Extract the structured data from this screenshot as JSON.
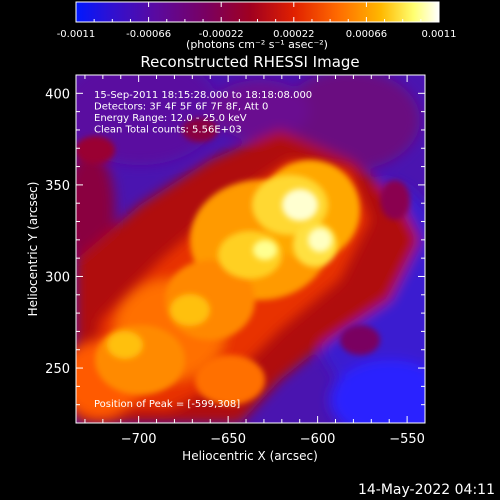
{
  "colorbar": {
    "tick_labels": [
      "-0.0011",
      "-0.00066",
      "-0.00022",
      "0.00022",
      "0.00066",
      "0.0011"
    ],
    "tick_values": [
      -0.0011,
      -0.00066,
      -0.00022,
      0.00022,
      0.00066,
      0.0011
    ],
    "range": [
      -0.0011,
      0.0011
    ],
    "units_label": "(photons cm⁻² s⁻¹ asec⁻²)"
  },
  "chart_data": {
    "type": "heatmap",
    "title": "Reconstructed RHESSI Image",
    "xlabel": "Heliocentric X (arcsec)",
    "ylabel": "Heliocentric Y (arcsec)",
    "xlim": [
      -735,
      -540
    ],
    "ylim": [
      220,
      410
    ],
    "x_ticks": [
      -700,
      -650,
      -600,
      -550
    ],
    "x_tick_labels": [
      "−700",
      "−650",
      "−600",
      "−550"
    ],
    "y_ticks": [
      250,
      300,
      350,
      400
    ],
    "y_tick_labels": [
      "250",
      "300",
      "350",
      "400"
    ],
    "annotations": [
      "15-Sep-2011 18:15:28.000 to 18:18:08.000",
      "Detectors: 3F 4F 5F 6F 7F 8F, Att 0",
      "Energy Range: 12.0 - 25.0 keV",
      "Clean    Total counts: 5.56E+03"
    ],
    "peak_label": "Position of Peak = [-599,308]",
    "peak_position": [
      -599,
      308
    ],
    "colormap": [
      "#0000ff",
      "#4000c0",
      "#600090",
      "#900040",
      "#d01000",
      "#ff6000",
      "#ffb000",
      "#ffff60",
      "#ffffff"
    ]
  },
  "footer": {
    "timestamp": "14-May-2022 04:11"
  }
}
